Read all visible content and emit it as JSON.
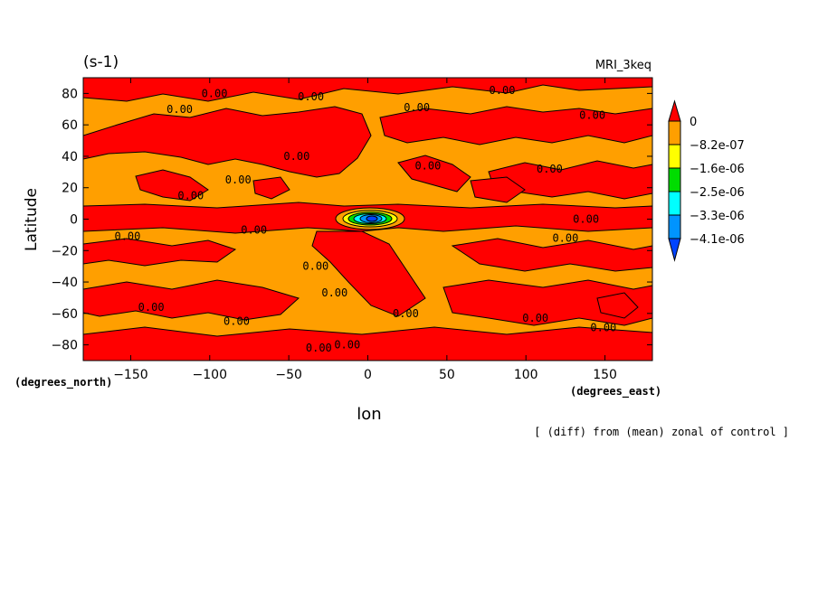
{
  "chart_data": {
    "type": "heatmap",
    "title_left": "(s-1)",
    "title_right": "MRI_3keq",
    "xlabel": "lon",
    "ylabel": "Latitude",
    "x_unit": "(degrees_east)",
    "y_unit": "(degrees_north)",
    "xlim": [
      -180,
      180
    ],
    "ylim": [
      -90,
      90
    ],
    "x_ticks": [
      -150,
      -100,
      -50,
      0,
      50,
      100,
      150
    ],
    "y_ticks": [
      -80,
      -60,
      -40,
      -20,
      0,
      20,
      40,
      60,
      80
    ],
    "contour_label": "0.00",
    "colorbar": {
      "levels": [
        "0",
        "-8.2e-07",
        "-1.6e-06",
        "-2.5e-06",
        "-3.3e-06",
        "-4.1e-06"
      ],
      "colors": [
        "#ff0000",
        "#ff9f00",
        "#ffff00",
        "#00dd00",
        "#00ffff",
        "#0094ff",
        "#0044ff"
      ]
    },
    "annotation": "[ (diff) from (mean) zonal of control ]"
  }
}
